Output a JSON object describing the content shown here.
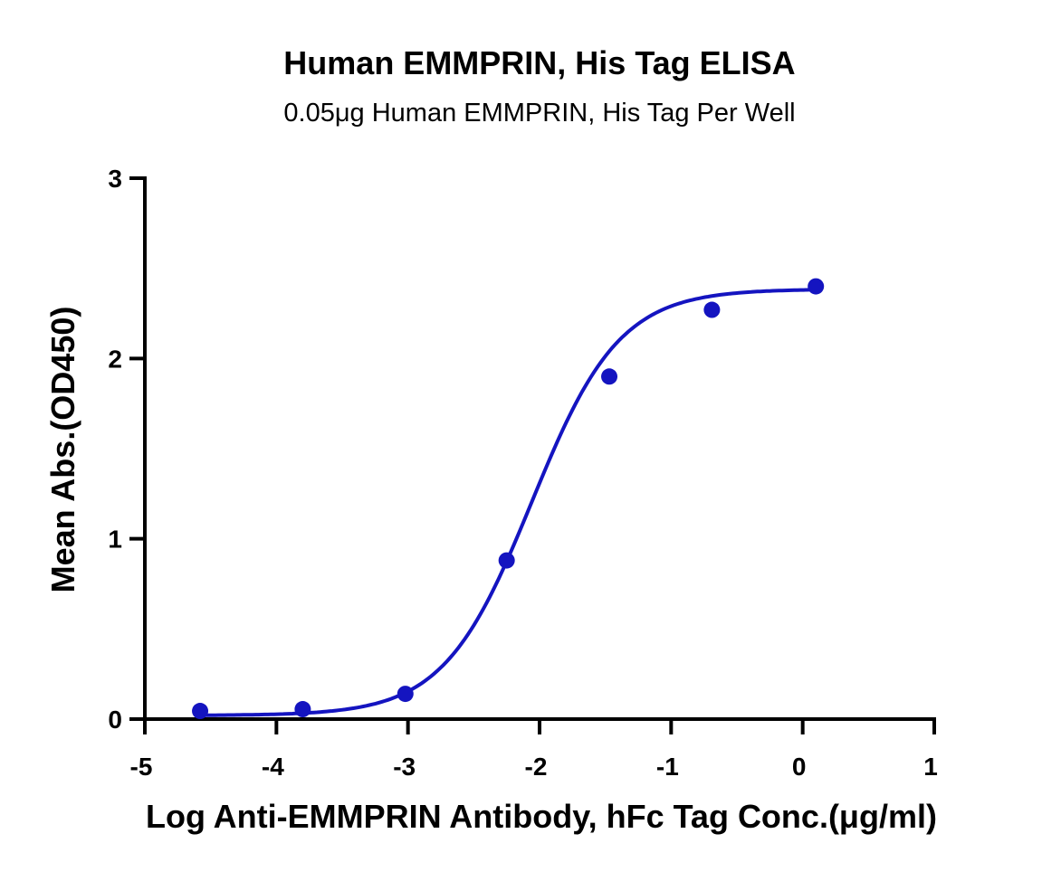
{
  "chart_data": {
    "type": "scatter",
    "title": "Human EMMPRIN, His Tag ELISA",
    "subtitle": "0.05μg Human EMMPRIN, His Tag Per Well",
    "xlabel": "Log Anti-EMMPRIN Antibody, hFc Tag Conc.(μg/ml)",
    "ylabel": "Mean Abs.(OD450)",
    "xlim": [
      -5,
      1
    ],
    "ylim": [
      0,
      3
    ],
    "xticks": [
      "-5",
      "-4",
      "-3",
      "-2",
      "-1",
      "0",
      "1"
    ],
    "yticks": [
      "0",
      "1",
      "2",
      "3"
    ],
    "grid": false,
    "color": "#1414c0",
    "series": [
      {
        "x": [
          -4.58,
          -3.8,
          -3.02,
          -2.25,
          -1.47,
          -0.69,
          0.1
        ],
        "y": [
          0.045,
          0.055,
          0.14,
          0.88,
          1.9,
          2.27,
          2.4
        ]
      }
    ],
    "fit": {
      "model": "4PL",
      "bottom": 0.02,
      "top": 2.385,
      "logEC50": -2.06,
      "hill": 1.3
    }
  }
}
